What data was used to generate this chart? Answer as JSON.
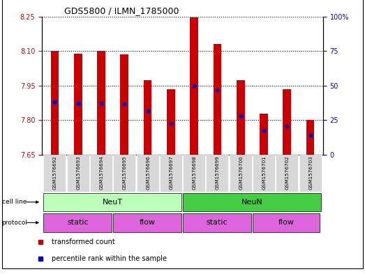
{
  "title": "GDS5800 / ILMN_1785000",
  "samples": [
    "GSM1576692",
    "GSM1576693",
    "GSM1576694",
    "GSM1576695",
    "GSM1576696",
    "GSM1576697",
    "GSM1576698",
    "GSM1576699",
    "GSM1576700",
    "GSM1576701",
    "GSM1576702",
    "GSM1576703"
  ],
  "bar_tops": [
    8.1,
    8.09,
    8.1,
    8.085,
    7.975,
    7.935,
    8.245,
    8.13,
    7.975,
    7.83,
    7.935,
    7.8
  ],
  "bar_base": 7.65,
  "blue_dot_values": [
    7.88,
    7.875,
    7.875,
    7.87,
    7.84,
    7.785,
    7.95,
    7.93,
    7.82,
    7.755,
    7.775,
    7.735
  ],
  "ylim_left": [
    7.65,
    8.25
  ],
  "ylim_right": [
    0,
    100
  ],
  "yticks_left": [
    7.65,
    7.8,
    7.95,
    8.1,
    8.25
  ],
  "yticks_right": [
    0,
    25,
    50,
    75,
    100
  ],
  "bar_color": "#cc0000",
  "dot_color": "#0000cc",
  "neut_color": "#bbffbb",
  "neun_color": "#44cc44",
  "protocol_color": "#dd66dd",
  "legend_red_label": "transformed count",
  "legend_blue_label": "percentile rank within the sample",
  "left_tick_color": "#cc0000",
  "right_tick_color": "#0000cc",
  "bar_width": 0.35
}
